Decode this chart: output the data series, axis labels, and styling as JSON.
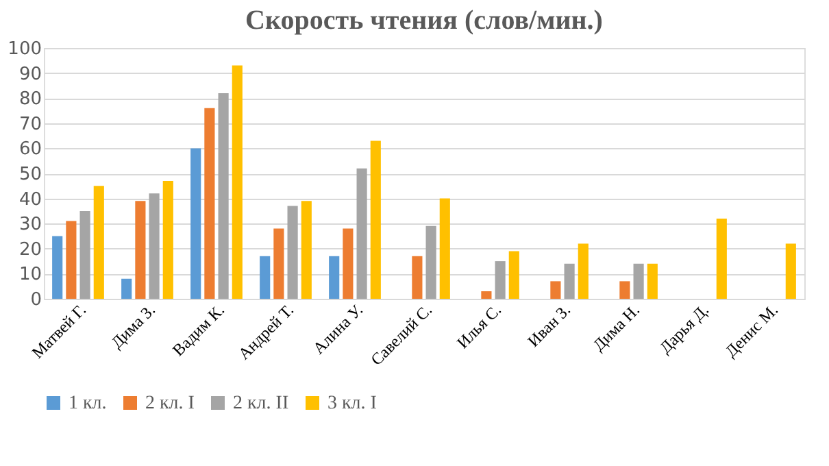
{
  "chart_data": {
    "type": "bar",
    "title": "Скорость чтения (слов/мин.)",
    "categories": [
      "Матвей Г.",
      "Дима З.",
      "Вадим К.",
      "Андрей Т.",
      "Алина У.",
      "Савелий С.",
      "Илья С.",
      "Иван З.",
      "Дима Н.",
      "Дарья Д.",
      "Денис М."
    ],
    "series": [
      {
        "name": "1 кл.",
        "color": "#5b9bd5",
        "values": [
          25,
          8,
          60,
          17,
          17,
          null,
          null,
          null,
          null,
          null,
          null
        ]
      },
      {
        "name": "2 кл. I",
        "color": "#ed7d31",
        "values": [
          31,
          39,
          76,
          28,
          28,
          17,
          3,
          7,
          7,
          null,
          null
        ]
      },
      {
        "name": "2 кл. II",
        "color": "#a5a5a5",
        "values": [
          35,
          42,
          82,
          37,
          52,
          29,
          15,
          14,
          14,
          null,
          null
        ]
      },
      {
        "name": "3 кл. I",
        "color": "#ffc000",
        "values": [
          45,
          47,
          93,
          39,
          63,
          40,
          19,
          22,
          14,
          32,
          22
        ]
      }
    ],
    "ylim": [
      0,
      100
    ],
    "yticks": [
      0,
      10,
      20,
      30,
      40,
      50,
      60,
      70,
      80,
      90,
      100
    ],
    "grid": "y",
    "legend": "bottom"
  }
}
